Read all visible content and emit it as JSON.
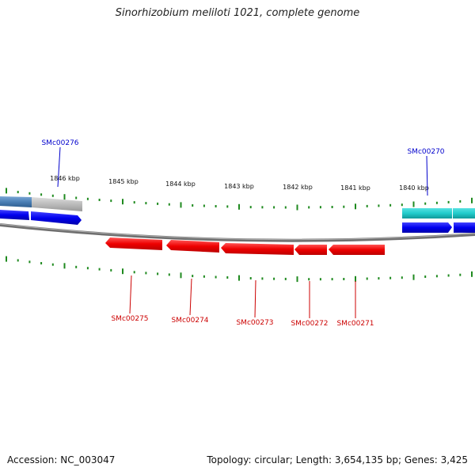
{
  "title": "Sinorhizobium meliloti 1021, complete genome",
  "footer": {
    "accession": "Accession: NC_003047",
    "stats": "Topology: circular; Length: 3,654,135 bp; Genes: 3,425"
  },
  "colors": {
    "backbone": "#808080",
    "tick": "#1f8a1f",
    "reverse_gene": "#ee0000",
    "forward_gene": "#0000ee",
    "cds_forward": "#22cccc",
    "cds_grey": "#bbbbbb",
    "cds_blue": "#4a7fb5",
    "forward_label": "#0000cc",
    "reverse_label": "#cc0000"
  },
  "ruler": {
    "labels": [
      "1846 kbp",
      "1845 kbp",
      "1844 kbp",
      "1843 kbp",
      "1842 kbp",
      "1841 kbp",
      "1840 kbp"
    ]
  },
  "forward_labels": [
    "SMc00276",
    "SMc00270"
  ],
  "reverse_labels": [
    "SMc00275",
    "SMc00274",
    "SMc00273",
    "SMc00272",
    "SMc00271"
  ]
}
